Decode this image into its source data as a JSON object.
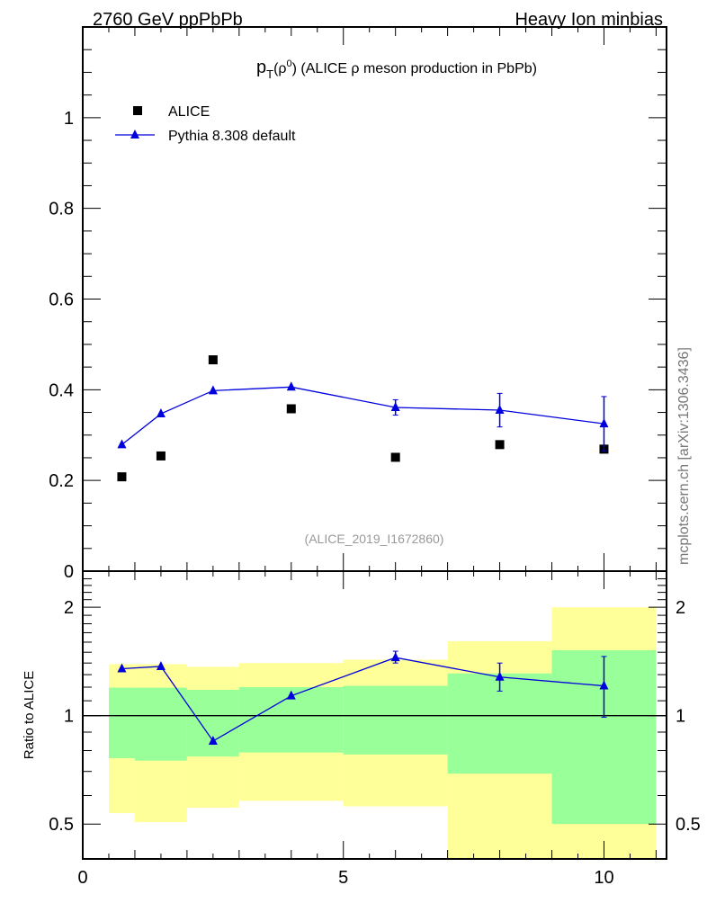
{
  "header": {
    "left": "2760 GeV ppPbPb",
    "right": "Heavy Ion minbias"
  },
  "side_label": "mcplots.cern.ch [arXiv:1306.3436]",
  "colors": {
    "data": "#000000",
    "mc": "#0000dd",
    "band_outer": "#ffff99",
    "band_inner": "#99ff99"
  },
  "chart_data": [
    {
      "type": "scatter",
      "title": "p_T(ρ0) (ALICE ρ meson production in PbPb)",
      "title_parts": {
        "p": "p",
        "sub": "T",
        "open": "(ρ",
        "sup": "0",
        "rest": ") (ALICE ρ meson production in PbPb)"
      },
      "annotation": "(ALICE_2019_I1672860)",
      "xlim": [
        0,
        11.2
      ],
      "ylim": [
        0,
        1.2
      ],
      "yticks": [
        "0",
        "0.2",
        "0.4",
        "0.6",
        "0.8",
        "1"
      ],
      "legend_position": "top-left",
      "series": [
        {
          "name": "ALICE",
          "marker": "square",
          "x": [
            0.75,
            1.5,
            2.5,
            4,
            6,
            8,
            10
          ],
          "y": [
            0.208,
            0.254,
            0.466,
            0.358,
            0.251,
            0.279,
            0.269
          ]
        },
        {
          "name": "Pythia 8.308 default",
          "marker": "triangle",
          "x": [
            0.75,
            1.5,
            2.5,
            4,
            6,
            8,
            10
          ],
          "y": [
            0.279,
            0.347,
            0.398,
            0.406,
            0.361,
            0.355,
            0.325
          ],
          "yerr": [
            0.003,
            0.004,
            0.004,
            0.005,
            0.017,
            0.037,
            0.06
          ]
        }
      ]
    },
    {
      "type": "line",
      "ylabel": "Ratio to ALICE",
      "yscale": "log",
      "ylim": [
        0.4,
        2.52
      ],
      "xlim": [
        0,
        11.2
      ],
      "yticks": [
        "0.5",
        "1",
        "2"
      ],
      "xticks": [
        "0",
        "5",
        "10"
      ],
      "bands": {
        "edges": [
          0.5,
          1,
          2,
          3,
          5,
          7,
          9,
          11
        ],
        "outer_hi": [
          1.39,
          1.39,
          1.366,
          1.4,
          1.43,
          1.61,
          2.0
        ],
        "outer_lo": [
          0.536,
          0.506,
          0.555,
          0.58,
          0.56,
          0.3,
          0.3
        ],
        "inner_hi": [
          1.196,
          1.196,
          1.18,
          1.2,
          1.21,
          1.31,
          1.52
        ],
        "inner_lo": [
          0.762,
          0.75,
          0.77,
          0.79,
          0.78,
          0.69,
          0.5
        ]
      },
      "series": [
        {
          "name": "Pythia 8.308 default / ALICE",
          "x": [
            0.75,
            1.5,
            2.5,
            4,
            6,
            8,
            10
          ],
          "y": [
            1.35,
            1.37,
            0.85,
            1.135,
            1.45,
            1.28,
            1.21
          ],
          "yerr_lo": [
            0.01,
            0.01,
            0.01,
            0.01,
            0.05,
            0.11,
            0.22
          ],
          "yerr_hi": [
            0.01,
            0.01,
            0.01,
            0.01,
            0.06,
            0.12,
            0.25
          ]
        }
      ]
    }
  ]
}
